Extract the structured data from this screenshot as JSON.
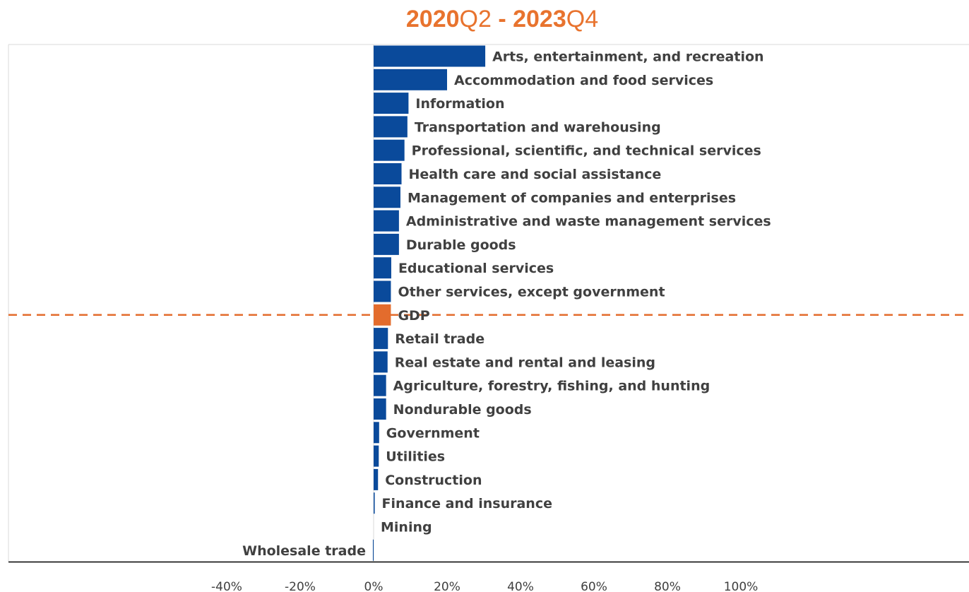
{
  "header": {
    "title_start_year": "2020",
    "title_start_quarter": "Q2",
    "title_separator": " - ",
    "title_end_year": "2023",
    "title_end_quarter": "Q4"
  },
  "colors": {
    "bar": "#0a4a9b",
    "highlight": "#e36c2d",
    "title": "#e8732e",
    "reference_line": "#e36c2d"
  },
  "chart_data": {
    "type": "bar",
    "orientation": "horizontal",
    "categories": [
      "Arts, entertainment, and recreation",
      "Accommodation and food services",
      "Information",
      "Transportation and warehousing",
      "Professional, scientific, and technical services",
      "Health care and social assistance",
      "Management of companies and enterprises",
      "Administrative and waste management services",
      "Durable goods",
      "Educational services",
      "Other services, except government",
      "GDP",
      "Retail trade",
      "Real estate and rental and leasing",
      "Agriculture, forestry, fishing, and hunting",
      "Nondurable goods",
      "Government",
      "Utilities",
      "Construction",
      "Finance and insurance",
      "Mining",
      "Wholesale trade"
    ],
    "values": [
      30.4,
      20.0,
      9.5,
      9.2,
      8.4,
      7.6,
      7.3,
      6.9,
      6.9,
      4.8,
      4.7,
      4.7,
      3.9,
      3.8,
      3.4,
      3.4,
      1.5,
      1.4,
      1.2,
      0.3,
      0.0,
      -0.2
    ],
    "highlight_category": "GDP",
    "reference_line_category": "GDP",
    "xlim": [
      -40,
      100
    ],
    "x_ticks": [
      -40,
      -20,
      0,
      20,
      40,
      60,
      80,
      100
    ],
    "x_tick_labels": [
      "-40%",
      "-20%",
      "0%",
      "20%",
      "40%",
      "60%",
      "80%",
      "100%"
    ],
    "grid": false,
    "legend": "none"
  }
}
